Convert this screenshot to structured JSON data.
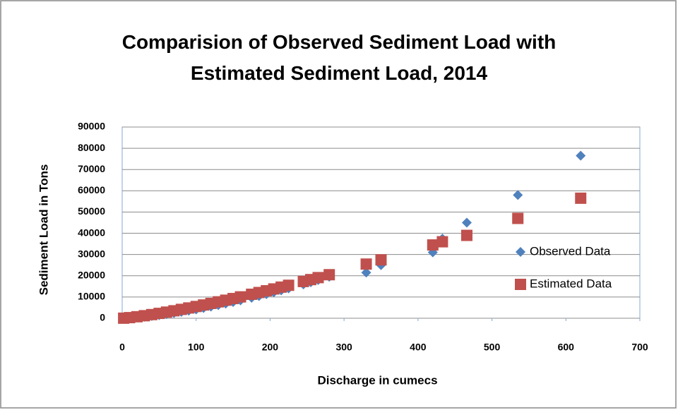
{
  "chart_data": {
    "type": "scatter",
    "title": "Comparision of Observed Sediment Load with Estimated Sediment Load, 2014",
    "x_label": "Discharge in cumecs",
    "y_label": "Sediment Load in Tons",
    "xlim": [
      0,
      700
    ],
    "xticks": [
      0,
      100,
      200,
      300,
      400,
      500,
      600,
      700
    ],
    "ylim": [
      0,
      90000
    ],
    "yticks": [
      0,
      10000,
      20000,
      30000,
      40000,
      50000,
      60000,
      70000,
      80000,
      90000
    ],
    "grid": true,
    "legend": "right",
    "series": [
      {
        "name": "Observed Data",
        "color": "#4f81bd",
        "marker": "diamond",
        "x": [
          2,
          10,
          20,
          30,
          40,
          50,
          60,
          70,
          80,
          90,
          100,
          110,
          120,
          130,
          140,
          150,
          160,
          175,
          185,
          195,
          205,
          215,
          225,
          245,
          255,
          265,
          280,
          330,
          350,
          420,
          433,
          466,
          535,
          620
        ],
        "values": [
          10,
          130,
          370,
          680,
          1050,
          1470,
          1940,
          2440,
          2980,
          3550,
          4150,
          4800,
          5470,
          6170,
          6890,
          7650,
          8420,
          9630,
          10480,
          11330,
          12210,
          13120,
          14040,
          15960,
          16950,
          17960,
          19500,
          21500,
          25000,
          31000,
          37500,
          45000,
          58000,
          76500
        ]
      },
      {
        "name": "Estimated Data",
        "color": "#c0504d",
        "marker": "square",
        "x": [
          2,
          10,
          20,
          30,
          40,
          50,
          60,
          70,
          80,
          90,
          100,
          110,
          120,
          130,
          140,
          150,
          160,
          175,
          185,
          195,
          205,
          215,
          225,
          245,
          255,
          265,
          280,
          330,
          350,
          420,
          433,
          466,
          535,
          620
        ],
        "values": [
          40,
          300,
          720,
          1200,
          1730,
          2300,
          2900,
          3520,
          4180,
          4850,
          5540,
          6260,
          6990,
          7740,
          8500,
          9280,
          10070,
          11290,
          12120,
          12940,
          13800,
          14660,
          15520,
          17300,
          18200,
          19130,
          20500,
          25500,
          27500,
          34500,
          36000,
          39000,
          47000,
          56500
        ]
      }
    ]
  }
}
